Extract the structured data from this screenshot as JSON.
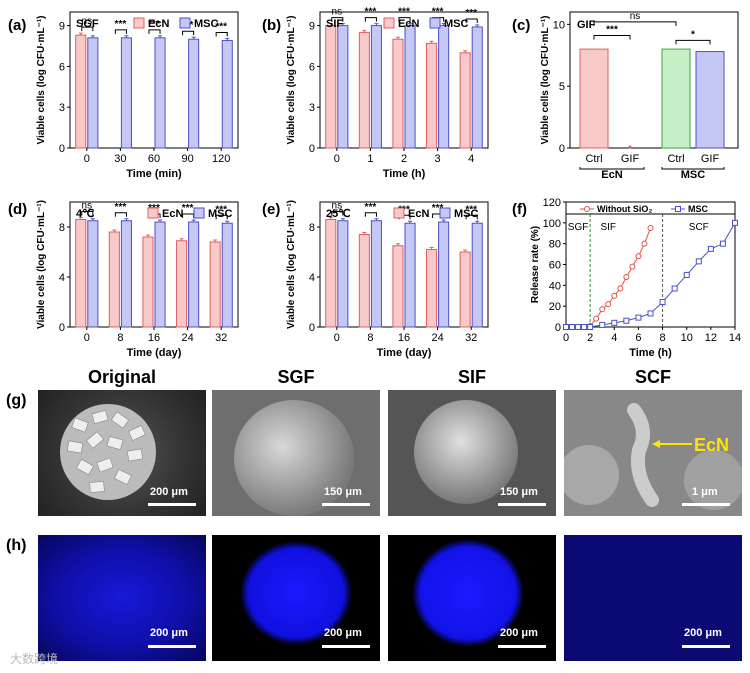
{
  "panels": {
    "a": {
      "letter": "(a)",
      "condition": "SGF"
    },
    "b": {
      "letter": "(b)",
      "condition": "SIF"
    },
    "c": {
      "letter": "(c)",
      "condition": "GIF"
    },
    "d": {
      "letter": "(d)",
      "condition": "4℃"
    },
    "e": {
      "letter": "(e)",
      "condition": "25℃"
    },
    "f": {
      "letter": "(f)"
    },
    "g": {
      "letter": "(g)"
    },
    "h": {
      "letter": "(h)"
    }
  },
  "legend": {
    "ecn": "EcN",
    "msc": "MSC",
    "without": "Without SiO₂"
  },
  "colors": {
    "ecn_fill": "#f7c9c9",
    "ecn_edge": "#e06060",
    "msc_fill": "#c5c8f5",
    "msc_edge": "#4b50c8",
    "gif_fill": "#c8f0c8",
    "gif_edge": "#3aa63a"
  },
  "chart_data": [
    {
      "id": "a",
      "type": "bar",
      "xlabel": "Time (min)",
      "ylabel": "Viable cells (log CFU·mL⁻¹)",
      "ylim": [
        0,
        10
      ],
      "yticks": [
        "0",
        "3",
        "6",
        "9"
      ],
      "categories": [
        "0",
        "30",
        "60",
        "90",
        "120"
      ],
      "series": [
        {
          "name": "EcN",
          "values": [
            8.3,
            0,
            0,
            0,
            0
          ]
        },
        {
          "name": "MSC",
          "values": [
            8.1,
            8.1,
            8.1,
            8.0,
            7.9
          ]
        }
      ],
      "significance": [
        "ns",
        "***",
        "***",
        "***",
        "***"
      ]
    },
    {
      "id": "b",
      "type": "bar",
      "xlabel": "Time (h)",
      "ylabel": "Viable cells (log CFU·mL⁻¹)",
      "ylim": [
        0,
        10
      ],
      "yticks": [
        "0",
        "3",
        "6",
        "9"
      ],
      "categories": [
        "0",
        "1",
        "2",
        "3",
        "4"
      ],
      "series": [
        {
          "name": "EcN",
          "values": [
            9.0,
            8.5,
            8.0,
            7.7,
            7.0
          ]
        },
        {
          "name": "MSC",
          "values": [
            9.0,
            9.0,
            9.0,
            9.0,
            8.9
          ]
        }
      ],
      "significance": [
        "ns",
        "***",
        "***",
        "***",
        "***"
      ]
    },
    {
      "id": "c",
      "type": "bar",
      "ylabel": "Viable cells (log CFU·mL⁻¹)",
      "ylim": [
        0,
        11
      ],
      "yticks": [
        "0",
        "5",
        "10"
      ],
      "categories": [
        "Ctrl",
        "GIF",
        "Ctrl",
        "GIF"
      ],
      "groups": [
        "EcN",
        "MSC"
      ],
      "values": [
        8.0,
        0,
        8.0,
        7.8
      ],
      "significance": [
        "***",
        "*",
        "ns"
      ]
    },
    {
      "id": "d",
      "type": "bar",
      "xlabel": "Time (day)",
      "ylabel": "Viable cells (log CFU·mL⁻¹)",
      "ylim": [
        0,
        10
      ],
      "yticks": [
        "0",
        "4",
        "8"
      ],
      "categories": [
        "0",
        "8",
        "16",
        "24",
        "32"
      ],
      "series": [
        {
          "name": "EcN",
          "values": [
            8.6,
            7.6,
            7.2,
            6.9,
            6.8
          ]
        },
        {
          "name": "MSC",
          "values": [
            8.5,
            8.5,
            8.4,
            8.4,
            8.3
          ]
        }
      ],
      "significance": [
        "ns",
        "***",
        "***",
        "***",
        "***"
      ]
    },
    {
      "id": "e",
      "type": "bar",
      "xlabel": "Time (day)",
      "ylabel": "Viable cells (log CFU·mL⁻¹)",
      "ylim": [
        0,
        10
      ],
      "yticks": [
        "0",
        "4",
        "8"
      ],
      "categories": [
        "0",
        "8",
        "16",
        "24",
        "32"
      ],
      "series": [
        {
          "name": "EcN",
          "values": [
            8.6,
            7.4,
            6.5,
            6.2,
            6.0
          ]
        },
        {
          "name": "MSC",
          "values": [
            8.5,
            8.5,
            8.3,
            8.4,
            8.3
          ]
        }
      ],
      "significance": [
        "ns",
        "***",
        "***",
        "***",
        "***"
      ]
    },
    {
      "id": "f",
      "type": "line",
      "xlabel": "Time (h)",
      "ylabel": "Release rate (%)",
      "xlim": [
        0,
        14
      ],
      "ylim": [
        0,
        120
      ],
      "xticks": [
        "0",
        "2",
        "4",
        "6",
        "8",
        "10",
        "12",
        "14"
      ],
      "yticks": [
        "0",
        "20",
        "40",
        "60",
        "80",
        "100",
        "120"
      ],
      "regions": [
        "SGF",
        "SIF",
        "SCF"
      ],
      "series": [
        {
          "name": "Without SiO₂",
          "x": [
            0,
            0.5,
            1,
            1.5,
            2,
            2.5,
            3,
            3.5,
            4,
            4.5,
            5,
            5.5,
            6,
            6.5,
            7
          ],
          "y": [
            0,
            0,
            0,
            0,
            1,
            8,
            17,
            22,
            30,
            37,
            48,
            58,
            68,
            80,
            95
          ]
        },
        {
          "name": "MSC",
          "x": [
            0,
            0.5,
            1,
            1.5,
            2,
            3,
            4,
            5,
            6,
            7,
            8,
            9,
            10,
            11,
            12,
            13,
            14
          ],
          "y": [
            0,
            0,
            0,
            0,
            0,
            2,
            4,
            6,
            9,
            13,
            24,
            37,
            50,
            63,
            75,
            80,
            100
          ]
        }
      ]
    }
  ],
  "micrographs": {
    "titles": [
      "Original",
      "SGF",
      "SIF",
      "SCF"
    ],
    "sem_scales": [
      "200 μm",
      "150 μm",
      "150 μm",
      "1 μm"
    ],
    "fluor_scales": [
      "200 μm",
      "200 μm",
      "200 μm",
      "200 μm"
    ],
    "arrow_label": "EcN"
  },
  "watermark": "大数跨境"
}
